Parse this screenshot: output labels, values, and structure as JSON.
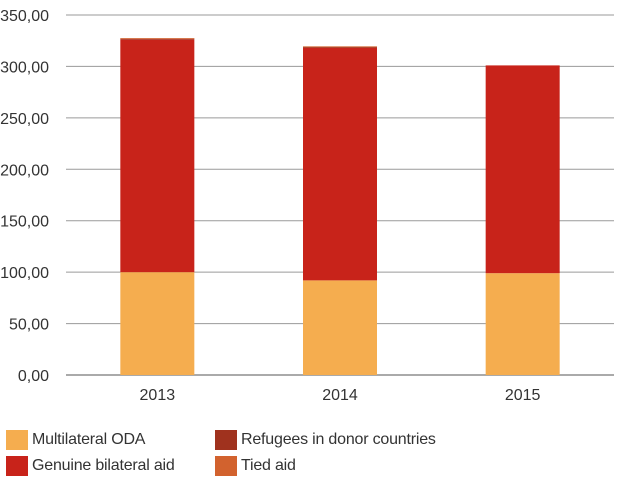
{
  "chart_data": {
    "type": "bar",
    "stacked": true,
    "categories": [
      "2013",
      "2014",
      "2015"
    ],
    "series": [
      {
        "name": "Multilateral ODA",
        "color": "#F5AD4F",
        "values": [
          100,
          92,
          99
        ]
      },
      {
        "name": "Genuine bilateral aid",
        "color": "#C8231A",
        "values": [
          226,
          226,
          202
        ]
      },
      {
        "name": "Refugees in donor countries",
        "color": "#A0321E",
        "values": [
          1,
          1,
          0
        ]
      },
      {
        "name": "Tied aid",
        "color": "#D2622E",
        "values": [
          0.5,
          0.5,
          0
        ]
      }
    ],
    "yticks": [
      "0,00",
      "50,00",
      "100,00",
      "150,00",
      "200,00",
      "250,00",
      "300,00",
      "350,00"
    ],
    "ylim": [
      0,
      350
    ],
    "grid": true,
    "legend_position": "bottom",
    "title": "",
    "xlabel": "",
    "ylabel": ""
  },
  "legend": [
    {
      "label": "Multilateral ODA",
      "color": "#F5AD4F"
    },
    {
      "label": "Refugees in donor countries",
      "color": "#A0321E"
    },
    {
      "label": "Genuine bilateral aid",
      "color": "#C8231A"
    },
    {
      "label": "Tied aid",
      "color": "#D2622E"
    }
  ]
}
